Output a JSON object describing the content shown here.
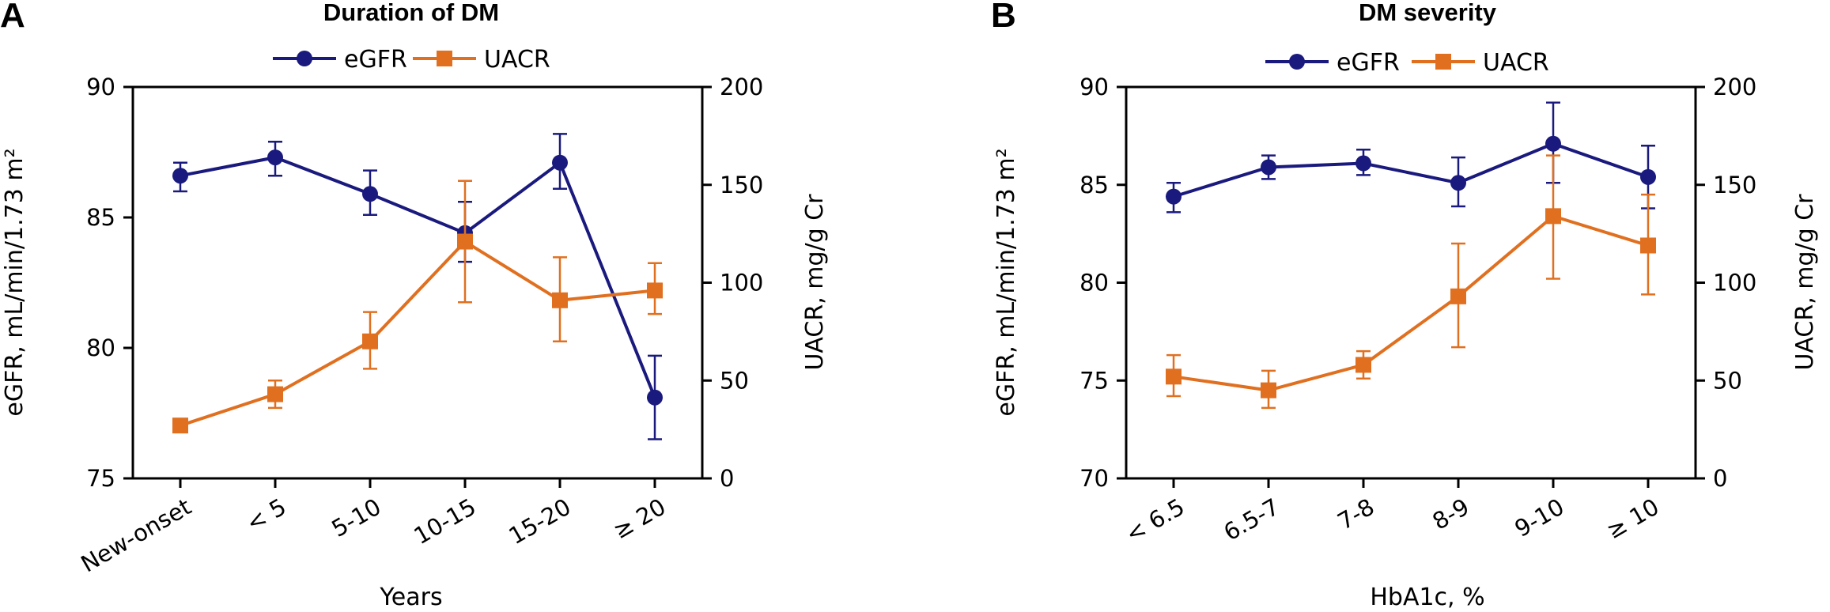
{
  "colors": {
    "egfr": "#1a1a7e",
    "uacr": "#e07020"
  },
  "chart_data": [
    {
      "panel_label": "A",
      "type": "line",
      "title": "Duration of DM",
      "xlabel": "Years",
      "ylabel_left": "eGFR, mL/min/1.73 m²",
      "ylabel_right": "UACR, mg/g Cr",
      "categories": [
        "New-onset",
        "< 5",
        "5-10",
        "10-15",
        "15-20",
        "≥ 20"
      ],
      "ylim_left": [
        75,
        90
      ],
      "yticks_left": [
        "75",
        "80",
        "85",
        "90"
      ],
      "ylim_right": [
        0,
        200
      ],
      "yticks_right": [
        "0",
        "50",
        "100",
        "150",
        "200"
      ],
      "grid": false,
      "legend_position": "top",
      "series": [
        {
          "name": "eGFR",
          "axis": "left",
          "marker": "circle",
          "values": [
            86.6,
            87.3,
            85.9,
            84.4,
            87.1,
            78.1
          ],
          "err_low": [
            86.0,
            86.6,
            85.1,
            83.3,
            86.1,
            76.5
          ],
          "err_high": [
            87.1,
            87.9,
            86.8,
            85.6,
            88.2,
            79.7
          ]
        },
        {
          "name": "UACR",
          "axis": "right",
          "marker": "square",
          "values": [
            27,
            43,
            70,
            121,
            91,
            96
          ],
          "err_low": [
            27,
            36,
            56,
            90,
            70,
            84
          ],
          "err_high": [
            27,
            50,
            85,
            152,
            113,
            110
          ]
        }
      ]
    },
    {
      "panel_label": "B",
      "type": "line",
      "title": "DM severity",
      "xlabel": "HbA1c, %",
      "ylabel_left": "eGFR, mL/min/1.73 m²",
      "ylabel_right": "UACR, mg/g Cr",
      "categories": [
        "< 6.5",
        "6.5-7",
        "7-8",
        "8-9",
        "9-10",
        "≥ 10"
      ],
      "ylim_left": [
        70,
        90
      ],
      "yticks_left": [
        "70",
        "75",
        "80",
        "85",
        "90"
      ],
      "ylim_right": [
        0,
        200
      ],
      "yticks_right": [
        "0",
        "50",
        "100",
        "150",
        "200"
      ],
      "grid": false,
      "legend_position": "top",
      "series": [
        {
          "name": "eGFR",
          "axis": "left",
          "marker": "circle",
          "values": [
            84.4,
            85.9,
            86.1,
            85.1,
            87.1,
            85.4
          ],
          "err_low": [
            83.6,
            85.3,
            85.5,
            83.9,
            85.1,
            83.8
          ],
          "err_high": [
            85.1,
            86.5,
            86.8,
            86.4,
            89.2,
            87.0
          ]
        },
        {
          "name": "UACR",
          "axis": "right",
          "marker": "square",
          "values": [
            52,
            45,
            58,
            93,
            134,
            119
          ],
          "err_low": [
            42,
            36,
            51,
            67,
            102,
            94
          ],
          "err_high": [
            63,
            55,
            65,
            120,
            165,
            145
          ]
        }
      ]
    }
  ]
}
